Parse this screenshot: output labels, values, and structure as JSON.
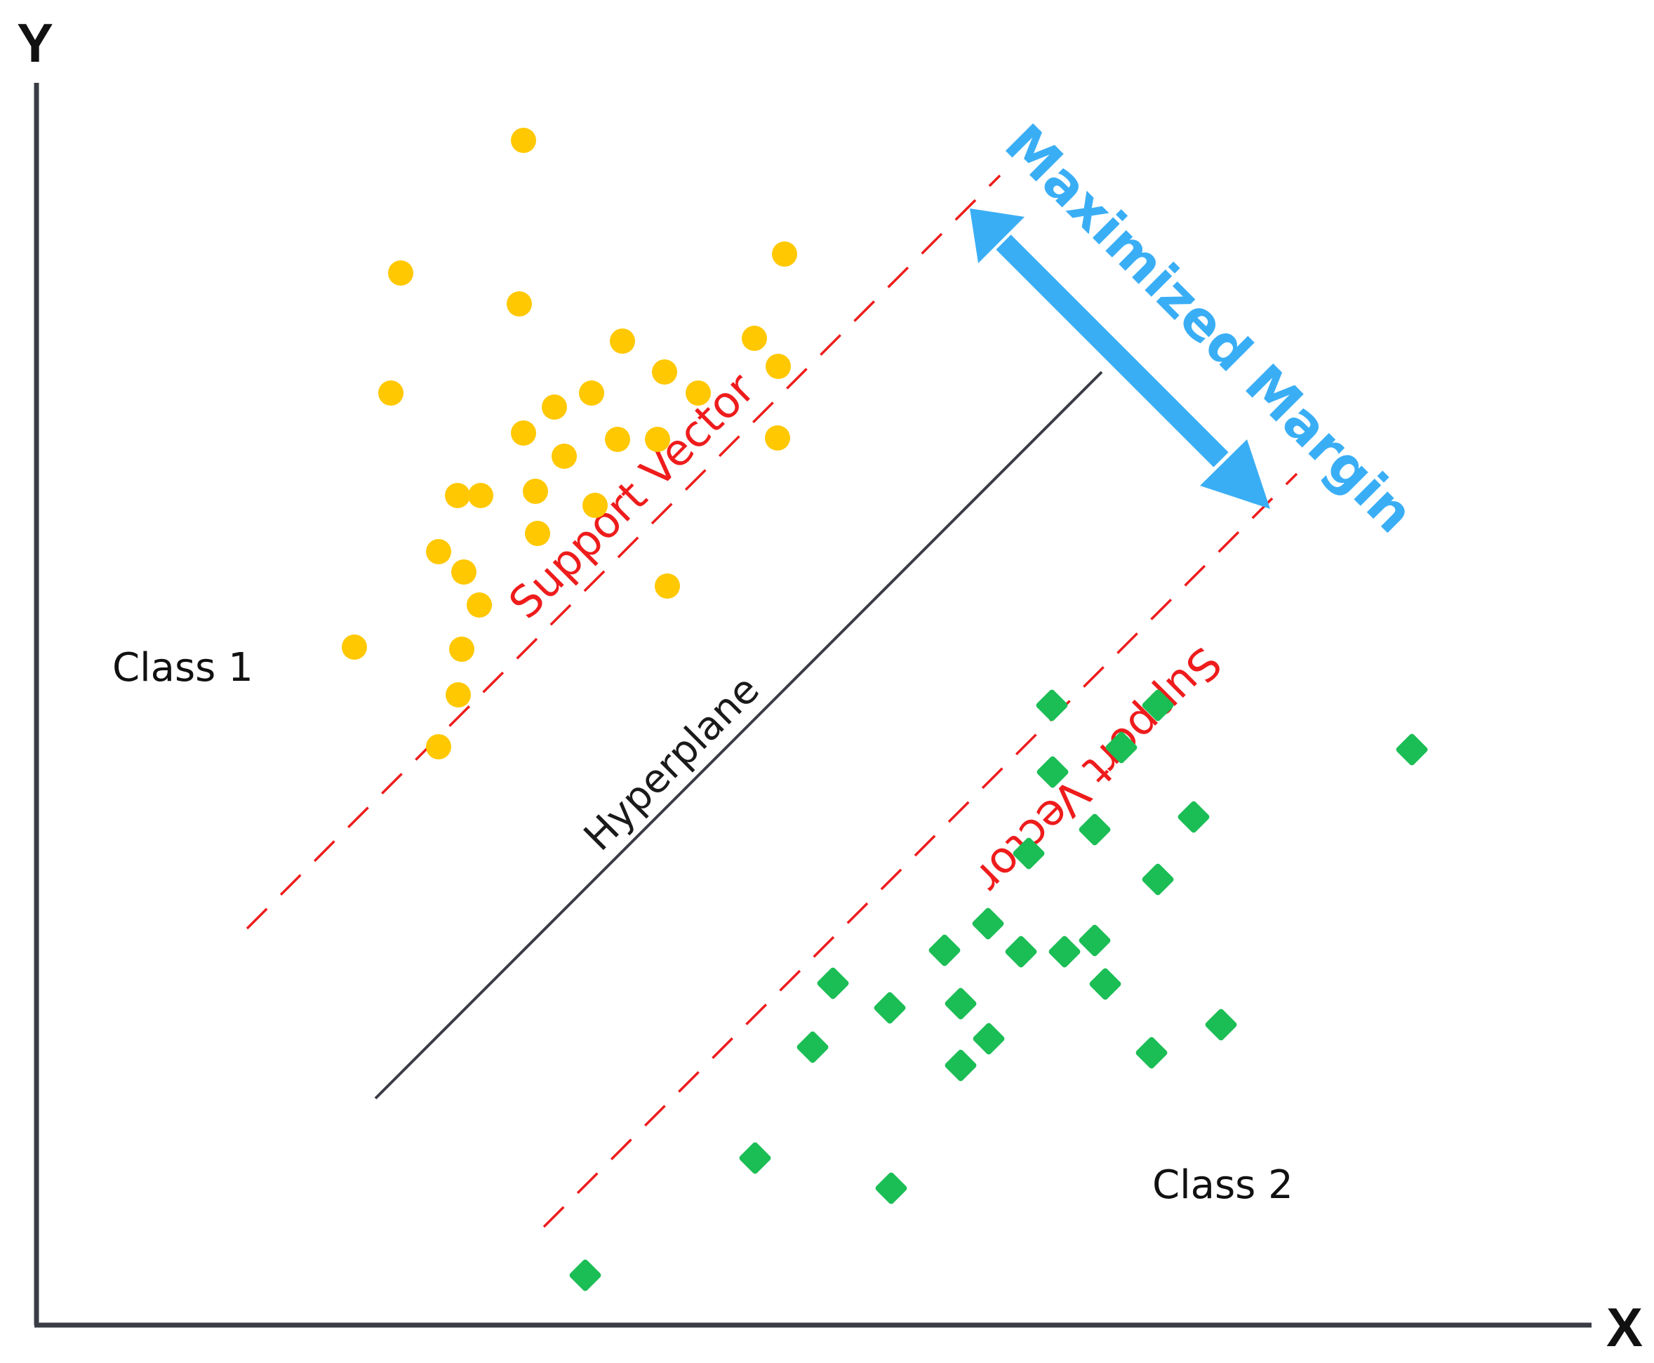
{
  "axes": {
    "x_label": "X",
    "y_label": "Y"
  },
  "labels": {
    "class1": "Class 1",
    "class2": "Class 2",
    "hyperplane": "Hyperplane",
    "support_vector_upper": "Support Vector",
    "support_vector_lower": "Support Vector",
    "margin": "Maximized Margin"
  },
  "colors": {
    "axis": "#3a3d45",
    "class1": "#ffc800",
    "class2": "#1bbd55",
    "support_vector": "#ee1c1c",
    "hyperplane": "#3a3d45",
    "margin": "#3aaef5"
  },
  "markers": {
    "class1": "circle",
    "class2": "diamond"
  }
}
